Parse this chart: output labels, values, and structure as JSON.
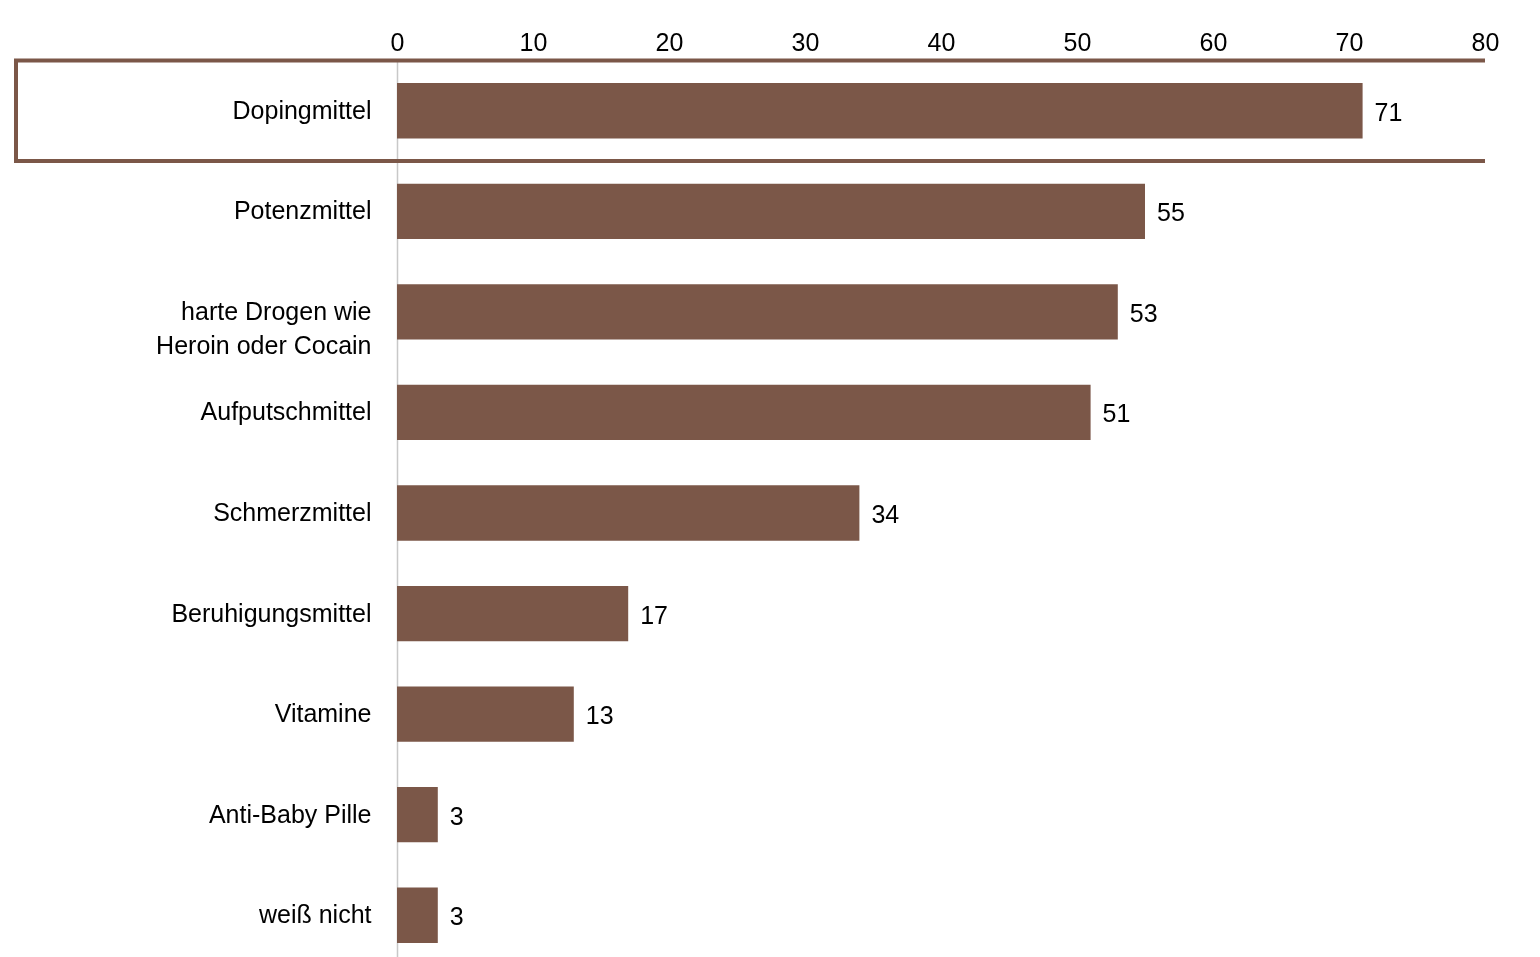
{
  "chart_data": {
    "type": "bar",
    "orientation": "horizontal",
    "categories": [
      "Dopingmittel",
      "Potenzmittel",
      "harte Drogen wie Heroin oder Cocain",
      "Aufputschmittel",
      "Schmerzmittel",
      "Beruhigungsmittel",
      "Vitamine",
      "Anti-Baby Pille",
      "weiß nicht"
    ],
    "values": [
      71,
      55,
      53,
      51,
      34,
      17,
      13,
      3,
      3
    ],
    "color": "#7b5748",
    "xlim": [
      0,
      80
    ],
    "xticks": [
      0,
      10,
      20,
      30,
      40,
      50,
      60,
      70,
      80
    ],
    "data_labels": true
  }
}
